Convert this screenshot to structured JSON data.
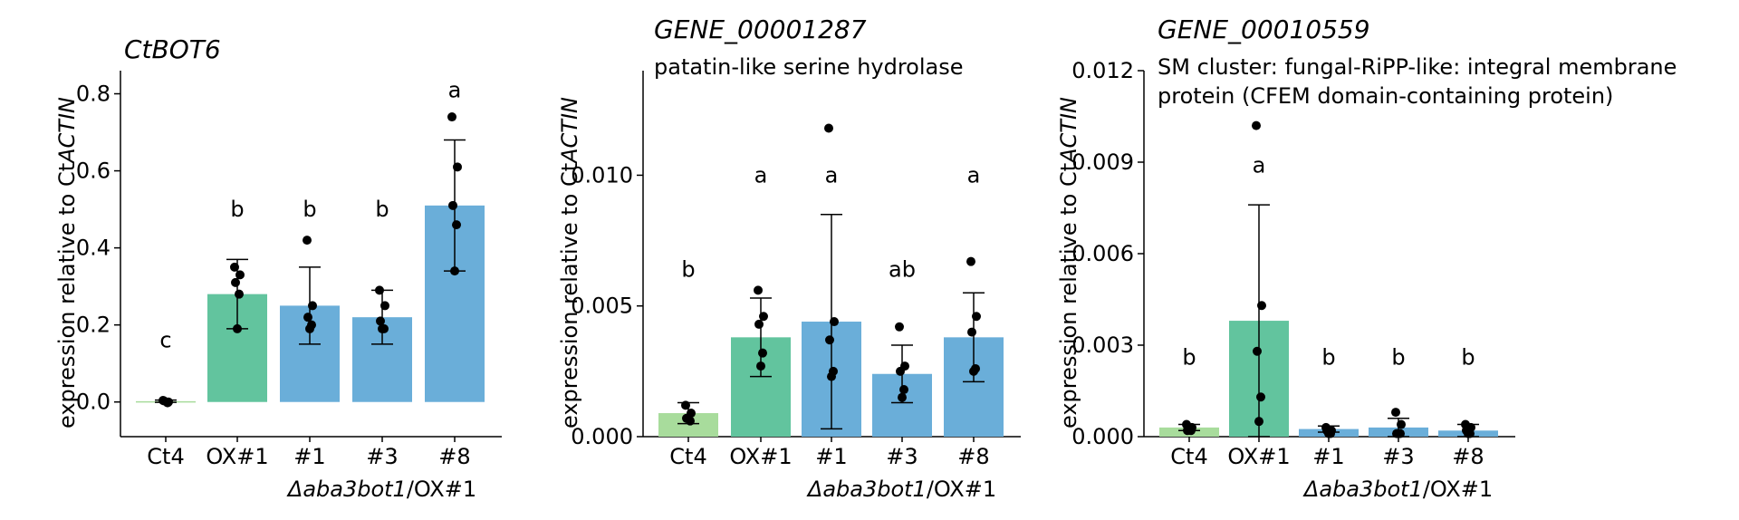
{
  "group_label": {
    "prefix": "Δ",
    "italic": "aba3bot1",
    "suffix": "/OX#1"
  },
  "colors": {
    "ct4": "#a8dc9c",
    "ox": "#62c49e",
    "mut": "#6aaed9",
    "axis": "#000000"
  },
  "chart_data": [
    {
      "type": "bar",
      "title": "CtBOT6",
      "subtitle": [],
      "ylabel": {
        "prefix": "expression relative to Ct",
        "italic": "ACTIN"
      },
      "ylim": [
        -0.09,
        0.86
      ],
      "yticks": [
        "0.0",
        "0.2",
        "0.4",
        "0.6",
        "0.8"
      ],
      "ytick_values": [
        0.0,
        0.2,
        0.4,
        0.6,
        0.8
      ],
      "categories": [
        "Ct4",
        "OX#1",
        "#1",
        "#3",
        "#8"
      ],
      "values": [
        0.002,
        0.28,
        0.25,
        0.22,
        0.51
      ],
      "errors": [
        0.003,
        0.09,
        0.1,
        0.07,
        0.17
      ],
      "letters": [
        "c",
        "b",
        "b",
        "b",
        "a"
      ],
      "letter_y": [
        0.16,
        0.5,
        0.5,
        0.5,
        0.81
      ],
      "points": [
        [
          0.004,
          0.0,
          0.003,
          -0.002
        ],
        [
          0.35,
          0.33,
          0.31,
          0.28,
          0.19
        ],
        [
          0.42,
          0.25,
          0.22,
          0.2,
          0.19
        ],
        [
          0.29,
          0.25,
          0.21,
          0.19,
          0.19
        ],
        [
          0.74,
          0.61,
          0.51,
          0.46,
          0.34
        ]
      ],
      "colors": [
        "#a8dc9c",
        "#62c49e",
        "#6aaed9",
        "#6aaed9",
        "#6aaed9"
      ]
    },
    {
      "type": "bar",
      "title": "GENE_00001287",
      "subtitle": [
        "patatin-like serine hydrolase"
      ],
      "ylabel": {
        "prefix": "expression relative to Ct",
        "italic": "ACTIN"
      },
      "ylim": [
        0.0,
        0.014
      ],
      "yticks": [
        "0.000",
        "0.005",
        "0.010"
      ],
      "ytick_values": [
        0.0,
        0.005,
        0.01
      ],
      "categories": [
        "Ct4",
        "OX#1",
        "#1",
        "#3",
        "#8"
      ],
      "values": [
        0.0009,
        0.0038,
        0.0044,
        0.0024,
        0.0038
      ],
      "errors": [
        0.0004,
        0.0015,
        0.0041,
        0.0011,
        0.0017
      ],
      "letters": [
        "b",
        "a",
        "a",
        "ab",
        "a"
      ],
      "letter_y": [
        0.0064,
        0.01,
        0.01,
        0.0064,
        0.01
      ],
      "points": [
        [
          0.0012,
          0.0009,
          0.0007,
          0.0006
        ],
        [
          0.0056,
          0.0046,
          0.0043,
          0.0032,
          0.0027
        ],
        [
          0.0118,
          0.0044,
          0.0037,
          0.0025,
          0.0023
        ],
        [
          0.0042,
          0.0027,
          0.0025,
          0.0018,
          0.0015
        ],
        [
          0.0067,
          0.0046,
          0.004,
          0.0026,
          0.0025
        ]
      ],
      "colors": [
        "#a8dc9c",
        "#62c49e",
        "#6aaed9",
        "#6aaed9",
        "#6aaed9"
      ]
    },
    {
      "type": "bar",
      "title": "GENE_00010559",
      "subtitle": [
        "SM cluster: fungal-RiPP-like: integral membrane",
        "protein (CFEM domain-containing protein)"
      ],
      "ylabel": {
        "prefix": "expression relative to Ct",
        "italic": "ACTIN"
      },
      "ylim": [
        0.0,
        0.012
      ],
      "yticks": [
        "0.000",
        "0.003",
        "0.006",
        "0.009",
        "0.012"
      ],
      "ytick_values": [
        0.0,
        0.003,
        0.006,
        0.009,
        0.012
      ],
      "categories": [
        "Ct4",
        "OX#1",
        "#1",
        "#3",
        "#8"
      ],
      "values": [
        0.0003,
        0.0038,
        0.00025,
        0.0003,
        0.0002
      ],
      "errors": [
        0.0001,
        0.0038,
        0.0001,
        0.0003,
        0.0002
      ],
      "letters": [
        "b",
        "a",
        "b",
        "b",
        "b"
      ],
      "letter_y": [
        0.0026,
        0.0089,
        0.0026,
        0.0026,
        0.0026
      ],
      "points": [
        [
          0.0004,
          0.0003,
          0.0002,
          0.0002
        ],
        [
          0.0102,
          0.0043,
          0.0028,
          0.0013,
          0.0005
        ],
        [
          0.0003,
          0.0002,
          0.0002,
          0.0001,
          0.0001
        ],
        [
          0.0008,
          0.0004,
          0.0001,
          0.0001,
          0.0001
        ],
        [
          0.0004,
          0.0003,
          0.0002,
          0.0001,
          0.0001
        ]
      ],
      "colors": [
        "#a8dc9c",
        "#62c49e",
        "#6aaed9",
        "#6aaed9",
        "#6aaed9"
      ]
    }
  ]
}
